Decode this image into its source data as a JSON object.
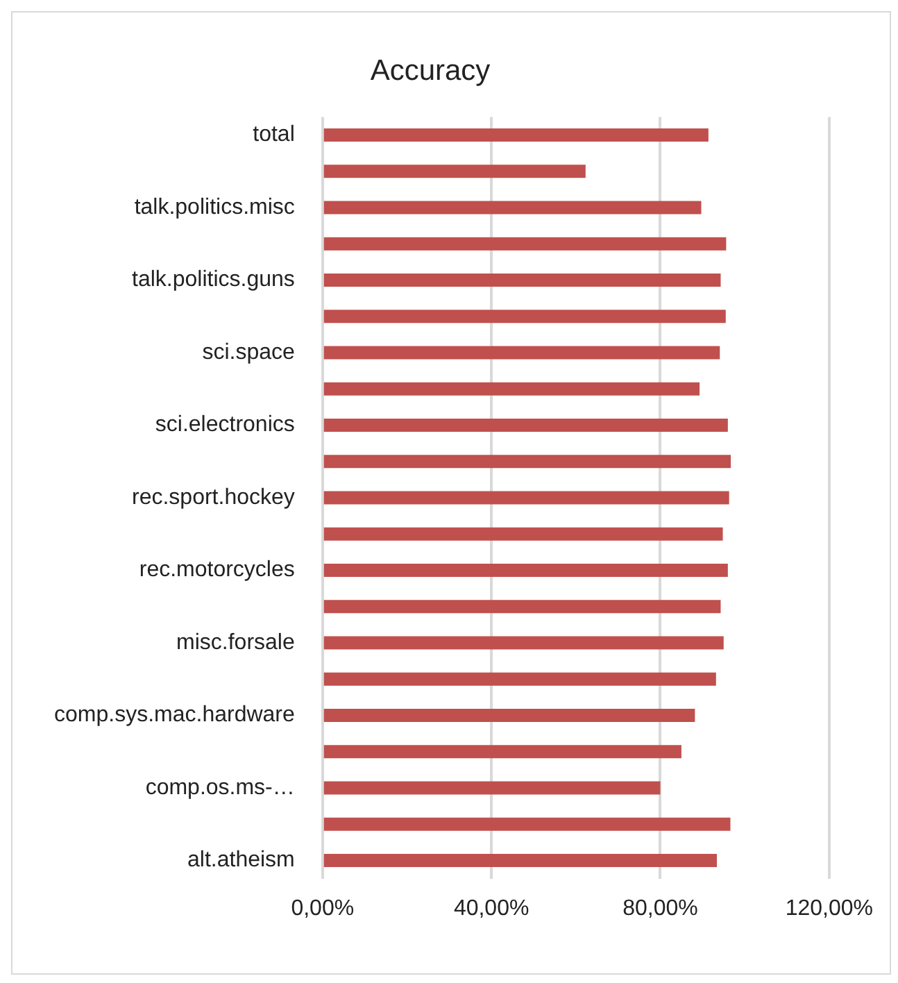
{
  "chart_data": {
    "type": "bar",
    "orientation": "horizontal",
    "title": "Accuracy",
    "categories": [
      "total",
      null,
      "talk.politics.misc",
      null,
      "talk.politics.guns",
      null,
      "sci.space",
      null,
      "sci.electronics",
      null,
      "rec.sport.hockey",
      null,
      "rec.motorcycles",
      null,
      "misc.forsale",
      null,
      "comp.sys.mac.hardware",
      null,
      "comp.os.ms-…",
      null,
      "alt.atheism"
    ],
    "values": [
      91.4,
      62.3,
      89.7,
      95.6,
      94.3,
      95.5,
      94.1,
      89.3,
      96.0,
      96.7,
      96.3,
      94.8,
      96.0,
      94.3,
      95.0,
      93.2,
      88.2,
      85.0,
      80.0,
      96.6,
      93.4
    ],
    "color": "#c0504d",
    "xlim": [
      0,
      120
    ],
    "xticks": [
      {
        "value": 0,
        "label": "0,00%"
      },
      {
        "value": 40,
        "label": "40,00%"
      },
      {
        "value": 80,
        "label": "80,00%"
      },
      {
        "value": 120,
        "label": "120,00%"
      }
    ],
    "grid": "x"
  }
}
